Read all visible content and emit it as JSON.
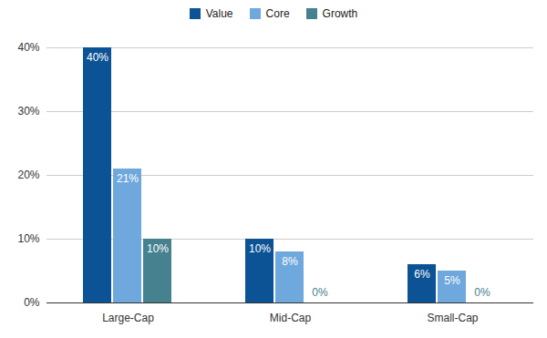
{
  "chart_data": {
    "type": "bar",
    "categories": [
      "Large-Cap",
      "Mid-Cap",
      "Small-Cap"
    ],
    "series": [
      {
        "name": "Value",
        "color": "#0b5394",
        "values": [
          40,
          10,
          6
        ],
        "value_labels": [
          "40%",
          "10%",
          "6%"
        ]
      },
      {
        "name": "Core",
        "color": "#6fa8dc",
        "values": [
          21,
          8,
          5
        ],
        "value_labels": [
          "21%",
          "8%",
          "5%"
        ]
      },
      {
        "name": "Growth",
        "color": "#45818e",
        "values": [
          10,
          0,
          0
        ],
        "value_labels": [
          "10%",
          "0%",
          "0%"
        ]
      }
    ],
    "ylim": [
      0,
      40
    ],
    "yticks": [
      {
        "value": 0,
        "label": "0%"
      },
      {
        "value": 10,
        "label": "10%"
      },
      {
        "value": 20,
        "label": "20%"
      },
      {
        "value": 30,
        "label": "30%"
      },
      {
        "value": 40,
        "label": "40%"
      }
    ],
    "grid": true,
    "legend": "top",
    "data_labels": true
  }
}
